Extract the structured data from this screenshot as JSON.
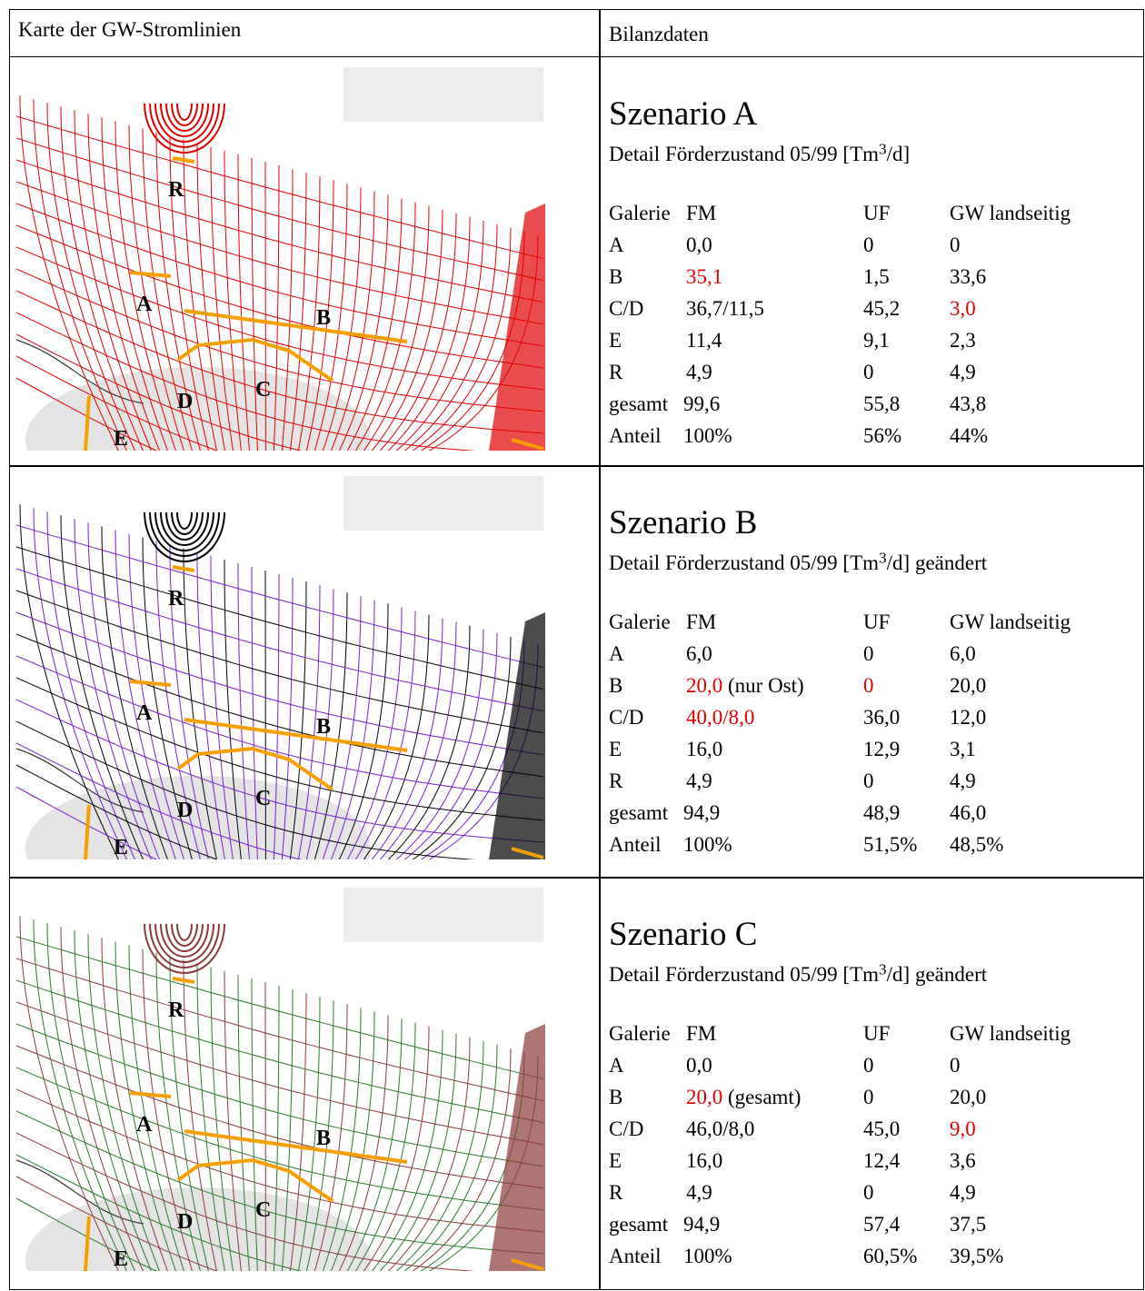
{
  "header": {
    "map_column": "Karte der GW-Stromlinien",
    "data_column": "Bilanzdaten"
  },
  "scenarios": [
    {
      "title": "Szenario A",
      "subtitle": [
        "Detail Förderzustand 05/99 [Tm",
        "3",
        "/d]"
      ],
      "map_labels": [
        "R",
        "A",
        "B",
        "C",
        "D",
        "E"
      ],
      "map_colors": [
        "#e00000",
        "#e00000"
      ],
      "table": {
        "columns": [
          "Galerie",
          "FM",
          "UF",
          "GW landseitig"
        ],
        "rows": [
          [
            "A",
            "0,0",
            "0",
            "0"
          ],
          [
            "B",
            {
              "text": "35,1",
              "color": "#e00000"
            },
            "1,5",
            "33,6"
          ],
          [
            "C/D",
            "36,7/11,5",
            "45,2",
            {
              "text": "3,0",
              "color": "#e00000"
            }
          ],
          [
            "E",
            "11,4",
            "9,1",
            "2,3"
          ],
          [
            "R",
            "4,9",
            "0",
            "4,9"
          ],
          [
            "gesamt",
            "99,6",
            "55,8",
            "43,8"
          ],
          [
            "Anteil",
            "100%",
            "56%",
            "44%"
          ]
        ]
      }
    },
    {
      "title": "Szenario B",
      "subtitle": [
        "Detail Förderzustand 05/99 [Tm",
        "3",
        "/d] geändert"
      ],
      "map_labels": [
        "R",
        "A",
        "B",
        "C",
        "D",
        "E"
      ],
      "map_colors": [
        "#7a1fd0",
        "#000000"
      ],
      "table": {
        "columns": [
          "Galerie",
          "FM",
          "UF",
          "GW landseitig"
        ],
        "rows": [
          [
            "A",
            "6,0",
            "0",
            "6,0"
          ],
          [
            "B",
            {
              "text": "20,0",
              "color": "#e00000",
              "note": "(nur Ost)"
            },
            {
              "text": "0",
              "color": "#e00000"
            },
            "20,0"
          ],
          [
            "C/D",
            {
              "text": "40,0/8,0",
              "color": "#e00000"
            },
            "36,0",
            "12,0"
          ],
          [
            "E",
            "16,0",
            "12,9",
            "3,1"
          ],
          [
            "R",
            "4,9",
            "0",
            "4,9"
          ],
          [
            "gesamt",
            "94,9",
            "48,9",
            "46,0"
          ],
          [
            "Anteil",
            "100%",
            "51,5%",
            "48,5%"
          ]
        ]
      }
    },
    {
      "title": "Szenario C",
      "subtitle": [
        "Detail Förderzustand 05/99 [Tm",
        "3",
        "/d] geändert"
      ],
      "map_labels": [
        "R",
        "A",
        "B",
        "C",
        "D",
        "E"
      ],
      "map_colors": [
        "#2a7a2a",
        "#8b3a3a"
      ],
      "table": {
        "columns": [
          "Galerie",
          "FM",
          "UF",
          "GW landseitig"
        ],
        "rows": [
          [
            "A",
            "0,0",
            "0",
            "0"
          ],
          [
            "B",
            {
              "text": "20,0",
              "color": "#e00000",
              "note": "(gesamt)"
            },
            "0",
            "20,0"
          ],
          [
            "C/D",
            "46,0/8,0",
            "45,0",
            {
              "text": "9,0",
              "color": "#e00000"
            }
          ],
          [
            "E",
            "16,0",
            "12,4",
            "3,6"
          ],
          [
            "R",
            "4,9",
            "0",
            "4,9"
          ],
          [
            "gesamt",
            "94,9",
            "57,4",
            "37,5"
          ],
          [
            "Anteil",
            "100%",
            "60,5%",
            "39,5%"
          ]
        ]
      }
    }
  ]
}
